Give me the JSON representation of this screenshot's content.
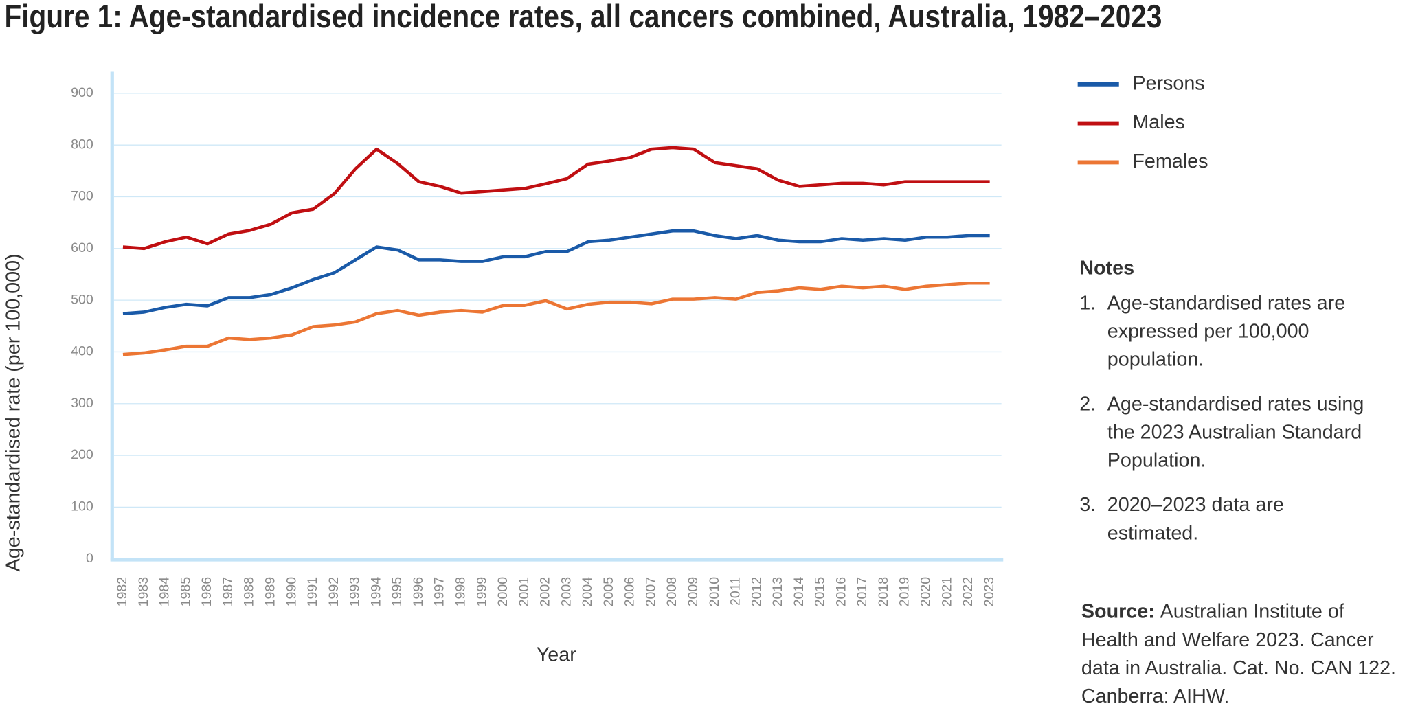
{
  "chart_data": {
    "type": "line",
    "title": "Figure 1: Age-standardised incidence rates, all cancers combined, Australia, 1982–2023",
    "x_label": "Year",
    "y_label": "Age-standardised rate (per 100,000)",
    "categories": [
      "1982",
      "1983",
      "1984",
      "1985",
      "1986",
      "1987",
      "1988",
      "1989",
      "1990",
      "1991",
      "1992",
      "1993",
      "1994",
      "1995",
      "1996",
      "1997",
      "1998",
      "1999",
      "2000",
      "2001",
      "2002",
      "2003",
      "2004",
      "2005",
      "2006",
      "2007",
      "2008",
      "2009",
      "2010",
      "2011",
      "2012",
      "2013",
      "2014",
      "2015",
      "2016",
      "2017",
      "2018",
      "2019",
      "2020",
      "2021",
      "2022",
      "2023"
    ],
    "series": [
      {
        "name": "Persons",
        "color": "#1a5aa8",
        "values": [
          474,
          477,
          486,
          492,
          489,
          505,
          505,
          511,
          524,
          540,
          553,
          578,
          603,
          597,
          578,
          578,
          575,
          575,
          584,
          584,
          594,
          594,
          613,
          616,
          622,
          628,
          634,
          634,
          625,
          619,
          625,
          616,
          613,
          613,
          619,
          616,
          619,
          616,
          622,
          622,
          625,
          625
        ]
      },
      {
        "name": "Males",
        "color": "#c00f12",
        "values": [
          603,
          600,
          613,
          622,
          609,
          628,
          635,
          647,
          669,
          676,
          706,
          754,
          792,
          764,
          729,
          720,
          707,
          710,
          713,
          716,
          725,
          735,
          763,
          769,
          776,
          792,
          795,
          792,
          766,
          760,
          754,
          732,
          720,
          723,
          726,
          726,
          723,
          729,
          729,
          729,
          729,
          729
        ]
      },
      {
        "name": "Females",
        "color": "#ec7634",
        "values": [
          395,
          398,
          404,
          411,
          411,
          427,
          424,
          427,
          433,
          449,
          452,
          458,
          474,
          480,
          471,
          477,
          480,
          477,
          490,
          490,
          499,
          483,
          492,
          496,
          496,
          493,
          502,
          502,
          505,
          502,
          515,
          518,
          524,
          521,
          527,
          524,
          527,
          521,
          527,
          530,
          533,
          533
        ]
      }
    ],
    "ylim": [
      0,
      900
    ],
    "yticks": [
      0,
      100,
      200,
      300,
      400,
      500,
      600,
      700,
      800,
      900
    ],
    "grid": true
  },
  "notes": {
    "title": "Notes",
    "items": [
      {
        "number": "1.",
        "lines": [
          "Age-standardised rates are",
          "expressed per 100,000",
          "population."
        ]
      },
      {
        "number": "2.",
        "lines": [
          "Age-standardised rates using",
          "the 2023 Australian Standard",
          "Population."
        ]
      },
      {
        "number": "3.",
        "lines": [
          "2020–2023 data are",
          "estimated."
        ]
      }
    ]
  },
  "source": {
    "label": "Source:",
    "lines": [
      "Australian Institute of",
      "Health and Welfare 2023. Cancer",
      "data in Australia. Cat. No. CAN 122.",
      "Canberra: AIHW."
    ]
  }
}
